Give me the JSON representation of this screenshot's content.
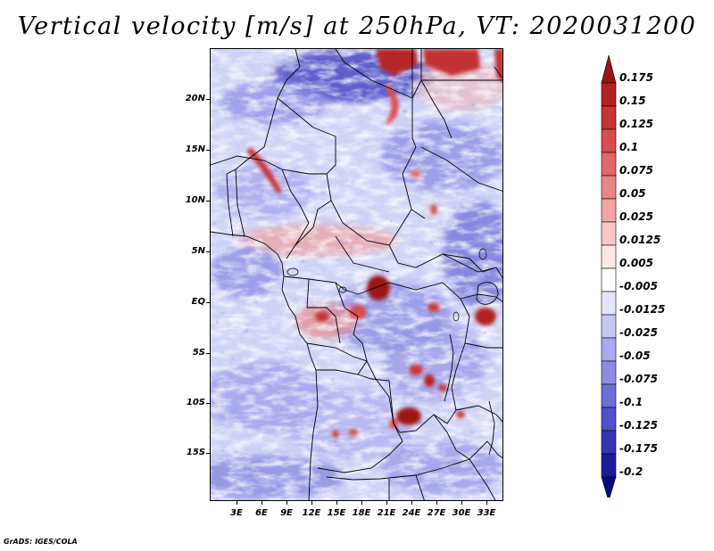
{
  "title": "Vertical velocity [m/s] at 250hPa, VT: 2020031200",
  "credit": "GrADS: IGES/COLA",
  "map": {
    "lat_labels": [
      "20N",
      "15N",
      "10N",
      "5N",
      "EQ",
      "5S",
      "10S",
      "15S"
    ],
    "lon_labels": [
      "3E",
      "6E",
      "9E",
      "12E",
      "15E",
      "18E",
      "21E",
      "24E",
      "27E",
      "30E",
      "33E"
    ]
  },
  "colorbar": {
    "labels": [
      "0.175",
      "0.15",
      "0.125",
      "0.1",
      "0.075",
      "0.05",
      "0.025",
      "0.0125",
      "0.005",
      "-0.005",
      "-0.0125",
      "-0.025",
      "-0.05",
      "-0.075",
      "-0.1",
      "-0.125",
      "-0.175",
      "-0.2"
    ],
    "colors": [
      "#9c1414",
      "#b42121",
      "#c83434",
      "#d84d4d",
      "#e26767",
      "#ea8585",
      "#f2a5a5",
      "#f8c8c8",
      "#fde8e8",
      "#ffffff",
      "#e4e4fa",
      "#c7c7f3",
      "#a9a9ec",
      "#8c8ce3",
      "#6e6ed8",
      "#5050c9",
      "#3434b4",
      "#1c1c9a",
      "#0a0a7e"
    ]
  },
  "palette": {
    "blue_background": "#cfd3f6",
    "blue_strong": "#4747c4",
    "blue_mid": "#8d8de6",
    "red_strong": "#b52525",
    "red_mid": "#e48484",
    "red_light": "#f4c3c3",
    "boundary": "#000000"
  }
}
